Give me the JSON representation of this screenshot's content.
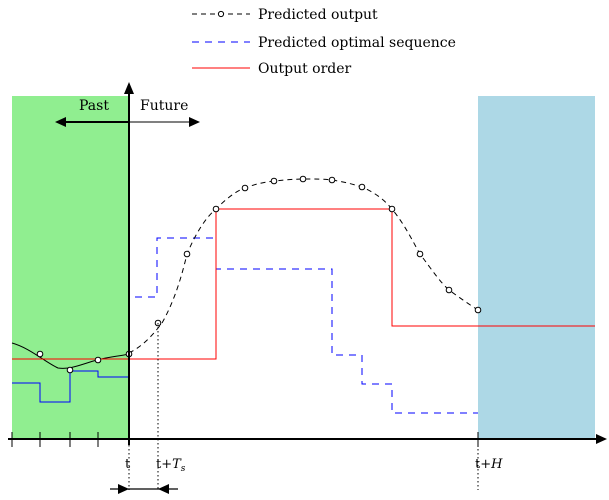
{
  "legend": {
    "predicted_output": "Predicted output",
    "predicted_sequence": "Predicted optimal sequence",
    "output_order": "Output order"
  },
  "regions": {
    "past": "Past",
    "future": "Future"
  },
  "ticks": {
    "t": "t",
    "t_plus_ts_prefix": "t+",
    "ts_symbol": "T",
    "ts_subscript": "s",
    "t_plus_h_prefix": "t+",
    "h_symbol": "H"
  },
  "colors": {
    "past_region": "#90ee90",
    "horizon_region": "#add8e6",
    "predicted_sequence": "#0000ff",
    "output_order": "#ff0000",
    "predicted_output": "#000000"
  }
}
